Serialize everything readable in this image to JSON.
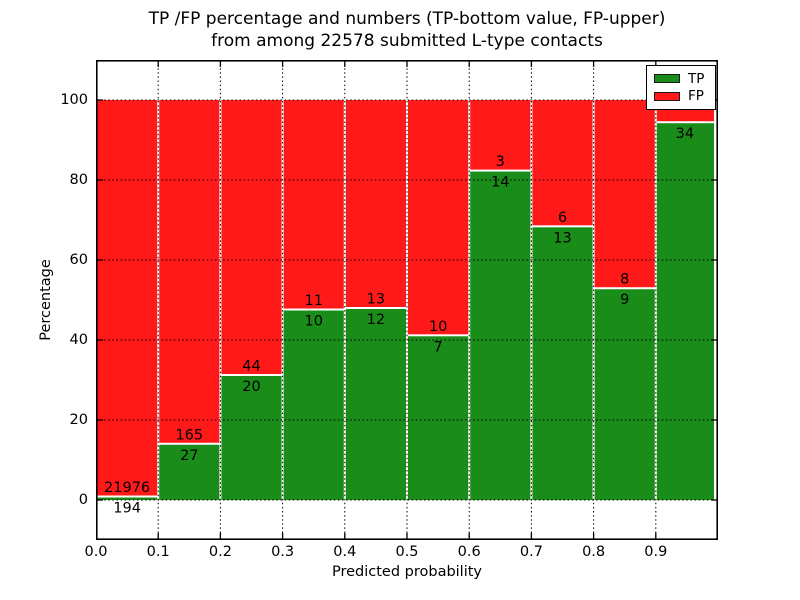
{
  "header": {
    "title_line1": "TP /FP percentage and numbers (TP-bottom value, FP-upper)",
    "title_line2": "from among 22578 submitted L-type contacts"
  },
  "chart_data": {
    "type": "bar",
    "stacked": true,
    "title": "TP /FP percentage and numbers (TP-bottom value, FP-upper)\nfrom among 22578 submitted L-type contacts",
    "xlabel": "Predicted probability",
    "ylabel": "Percentage",
    "xlim": [
      0.0,
      1.0
    ],
    "ylim": [
      -10,
      110
    ],
    "x_ticks": [
      "0.0",
      "0.1",
      "0.2",
      "0.3",
      "0.4",
      "0.5",
      "0.6",
      "0.7",
      "0.8",
      "0.9"
    ],
    "y_ticks": [
      "0",
      "20",
      "40",
      "60",
      "80",
      "100"
    ],
    "y_tick_values": [
      0,
      20,
      40,
      60,
      80,
      100
    ],
    "grid": "dotted-black-over-bars",
    "total_contacts": "22578",
    "units": "percent of bin (TP+FP stacked to 100%)",
    "bins": [
      {
        "range": [
          0.0,
          0.1
        ],
        "tp": 194,
        "fp": 21976,
        "tp_label": "194",
        "fp_label": "21976"
      },
      {
        "range": [
          0.1,
          0.2
        ],
        "tp": 27,
        "fp": 165,
        "tp_label": "27",
        "fp_label": "165"
      },
      {
        "range": [
          0.2,
          0.3
        ],
        "tp": 20,
        "fp": 44,
        "tp_label": "20",
        "fp_label": "44"
      },
      {
        "range": [
          0.3,
          0.4
        ],
        "tp": 10,
        "fp": 11,
        "tp_label": "10",
        "fp_label": "11"
      },
      {
        "range": [
          0.4,
          0.5
        ],
        "tp": 12,
        "fp": 13,
        "tp_label": "12",
        "fp_label": "13"
      },
      {
        "range": [
          0.5,
          0.6
        ],
        "tp": 7,
        "fp": 10,
        "tp_label": "7",
        "fp_label": "10"
      },
      {
        "range": [
          0.6,
          0.7
        ],
        "tp": 14,
        "fp": 3,
        "tp_label": "14",
        "fp_label": "3"
      },
      {
        "range": [
          0.7,
          0.8
        ],
        "tp": 13,
        "fp": 6,
        "tp_label": "13",
        "fp_label": "6"
      },
      {
        "range": [
          0.8,
          0.9
        ],
        "tp": 9,
        "fp": 8,
        "tp_label": "9",
        "fp_label": "8"
      },
      {
        "range": [
          0.9,
          1.0
        ],
        "tp": 34,
        "fp": 2,
        "tp_label": "34",
        "fp_label": ""
      }
    ],
    "legend": {
      "position": "upper right",
      "entries": [
        {
          "label": "TP",
          "color": "#198c19"
        },
        {
          "label": "FP",
          "color": "#ff1919"
        }
      ]
    },
    "colors": {
      "tp": "#198c19",
      "fp": "#ff1919",
      "bar_edge": "#ffffff",
      "grid": "#000000",
      "frame": "#000000",
      "background": "#ffffff"
    }
  }
}
